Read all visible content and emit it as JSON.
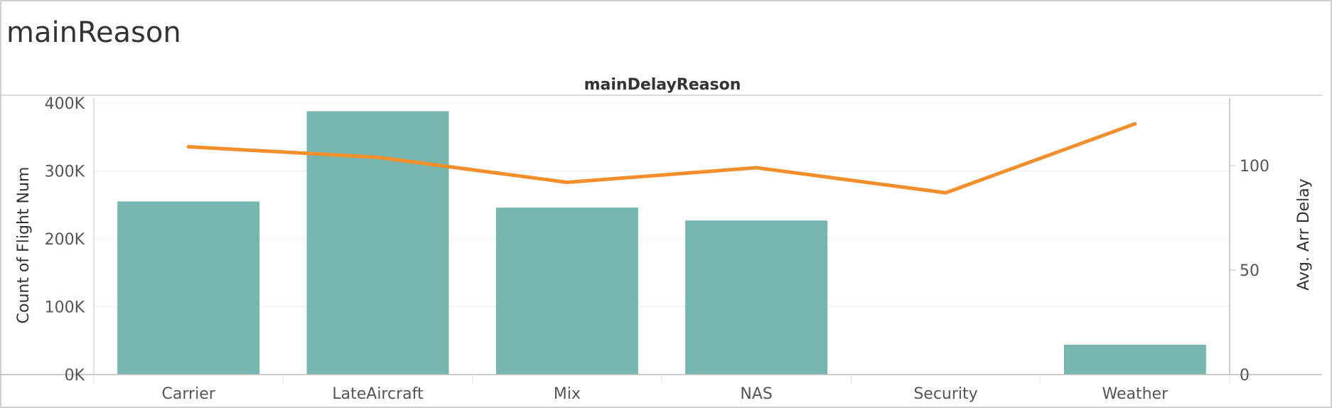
{
  "sheet_title": "mainReason",
  "colors": {
    "bar": "#76b5b0",
    "line": "#f28e2b",
    "text": "#555555",
    "axis_title": "#333333"
  },
  "chart_data": {
    "type": "bar",
    "title": "mainDelayReason",
    "categories": [
      "Carrier",
      "LateAircraft",
      "Mix",
      "NAS",
      "Security",
      "Weather"
    ],
    "series": [
      {
        "type": "bar",
        "axis": "left",
        "values": [
          255000,
          388000,
          246000,
          227000,
          0,
          44000
        ]
      },
      {
        "type": "line",
        "axis": "right",
        "values": [
          109,
          104,
          92,
          99,
          87,
          120
        ]
      }
    ],
    "ylabel": "Count of Flight Num",
    "ylim": [
      0,
      400000
    ],
    "yticks": [
      "0K",
      "100K",
      "200K",
      "300K",
      "400K"
    ],
    "y2label": "Avg. Arr Delay",
    "y2lim": [
      0,
      100
    ],
    "y2ticks": [
      "0",
      "50",
      "100"
    ],
    "grid": true
  }
}
